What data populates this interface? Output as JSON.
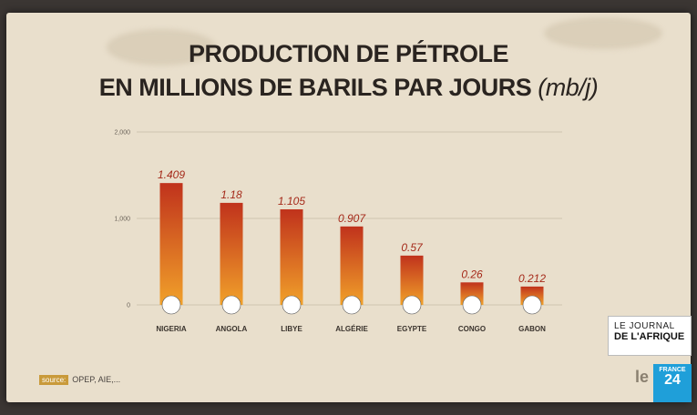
{
  "chart_data": {
    "type": "bar",
    "title": "PRODUCTION DE PÉTROLE",
    "subtitle": "EN MILLIONS DE BARILS PAR JOURS",
    "unit": "(mb/j)",
    "categories": [
      "NIGERIA",
      "ANGOLA",
      "LIBYE",
      "ALGÉRIE",
      "EGYPTE",
      "CONGO",
      "GABON"
    ],
    "values": [
      1.409,
      1.18,
      1.105,
      0.907,
      0.57,
      0.26,
      0.212
    ],
    "data_labels": [
      "1.409",
      "1.18",
      "1.105",
      "0.907",
      "0.57",
      "0.26",
      "0.212"
    ],
    "y_ticks": [
      "0",
      "1,000",
      "2,000"
    ],
    "y_tick_values": [
      0,
      1,
      2
    ],
    "ylim": [
      0,
      2
    ],
    "grid": true,
    "xlabel": "",
    "ylabel": "",
    "colors": {
      "bar_top": "#c0321c",
      "bar_bottom": "#f1a12a",
      "label": "#a52a1a"
    }
  },
  "source": {
    "tag": "source:",
    "text": "OPEP, AIE,..."
  },
  "branding": {
    "journal_line1": "LE JOURNAL",
    "journal_line2": "DE L'AFRIQUE",
    "channel_line1": "FRANCE",
    "channel_line2": "24"
  }
}
